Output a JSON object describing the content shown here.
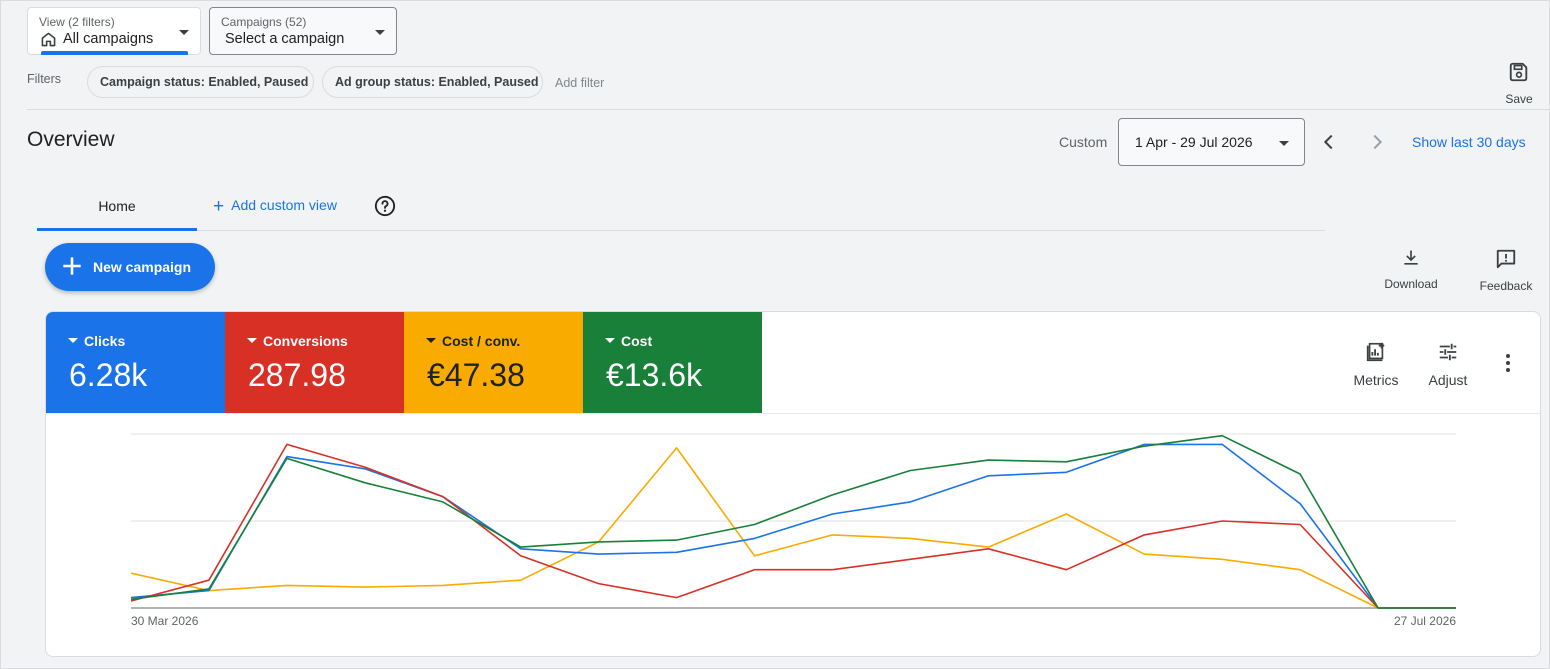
{
  "view_selector": {
    "caption": "View (2 filters)",
    "value": "All campaigns",
    "icon": "home-icon"
  },
  "campaign_selector": {
    "caption": "Campaigns (52)",
    "value": "Select a campaign"
  },
  "filters": {
    "label": "Filters",
    "chips": [
      "Campaign status: Enabled, Paused",
      "Ad group status: Enabled, Paused"
    ],
    "add_filter": "Add filter"
  },
  "save": {
    "label": "Save",
    "icon": "save-icon"
  },
  "overview": {
    "title": "Overview",
    "date_label": "Custom",
    "date_range": "1 Apr - 29 Jul 2026",
    "show_last": "Show last 30 days"
  },
  "tabs": {
    "home": "Home",
    "add_custom_view": "Add custom view"
  },
  "new_campaign": "New campaign",
  "tools": {
    "download": "Download",
    "feedback": "Feedback"
  },
  "scorecards": [
    {
      "name": "Clicks",
      "value": "6.28k",
      "color": "#1a73e8"
    },
    {
      "name": "Conversions",
      "value": "287.98",
      "color": "#d93025"
    },
    {
      "name": "Cost / conv.",
      "value": "€47.38",
      "color": "#f9ab00"
    },
    {
      "name": "Cost",
      "value": "€13.6k",
      "color": "#188038"
    }
  ],
  "card_tools": {
    "metrics": "Metrics",
    "adjust": "Adjust"
  },
  "chart_data": {
    "type": "line",
    "x_start_label": "30 Mar 2026",
    "x_end_label": "27 Jul 2026",
    "y_scale": [
      0,
      100
    ],
    "grid": true,
    "series": [
      {
        "name": "Clicks",
        "color": "#1a73e8",
        "values": [
          6,
          10,
          87,
          80,
          64,
          34,
          31,
          32,
          40,
          54,
          61,
          76,
          78,
          94,
          94,
          60,
          0,
          0
        ]
      },
      {
        "name": "Conversions",
        "color": "#d93025",
        "values": [
          4,
          16,
          94,
          81,
          64,
          30,
          14,
          6,
          22,
          22,
          28,
          34,
          22,
          42,
          50,
          48,
          0,
          0
        ]
      },
      {
        "name": "Cost / conv.",
        "color": "#f9ab00",
        "values": [
          20,
          10,
          13,
          12,
          13,
          16,
          38,
          92,
          30,
          42,
          40,
          35,
          54,
          31,
          28,
          22,
          0,
          0
        ]
      },
      {
        "name": "Cost",
        "color": "#188038",
        "values": [
          5,
          11,
          86,
          72,
          61,
          35,
          38,
          39,
          48,
          65,
          79,
          85,
          84,
          93,
          99,
          77,
          0,
          0
        ]
      }
    ]
  }
}
